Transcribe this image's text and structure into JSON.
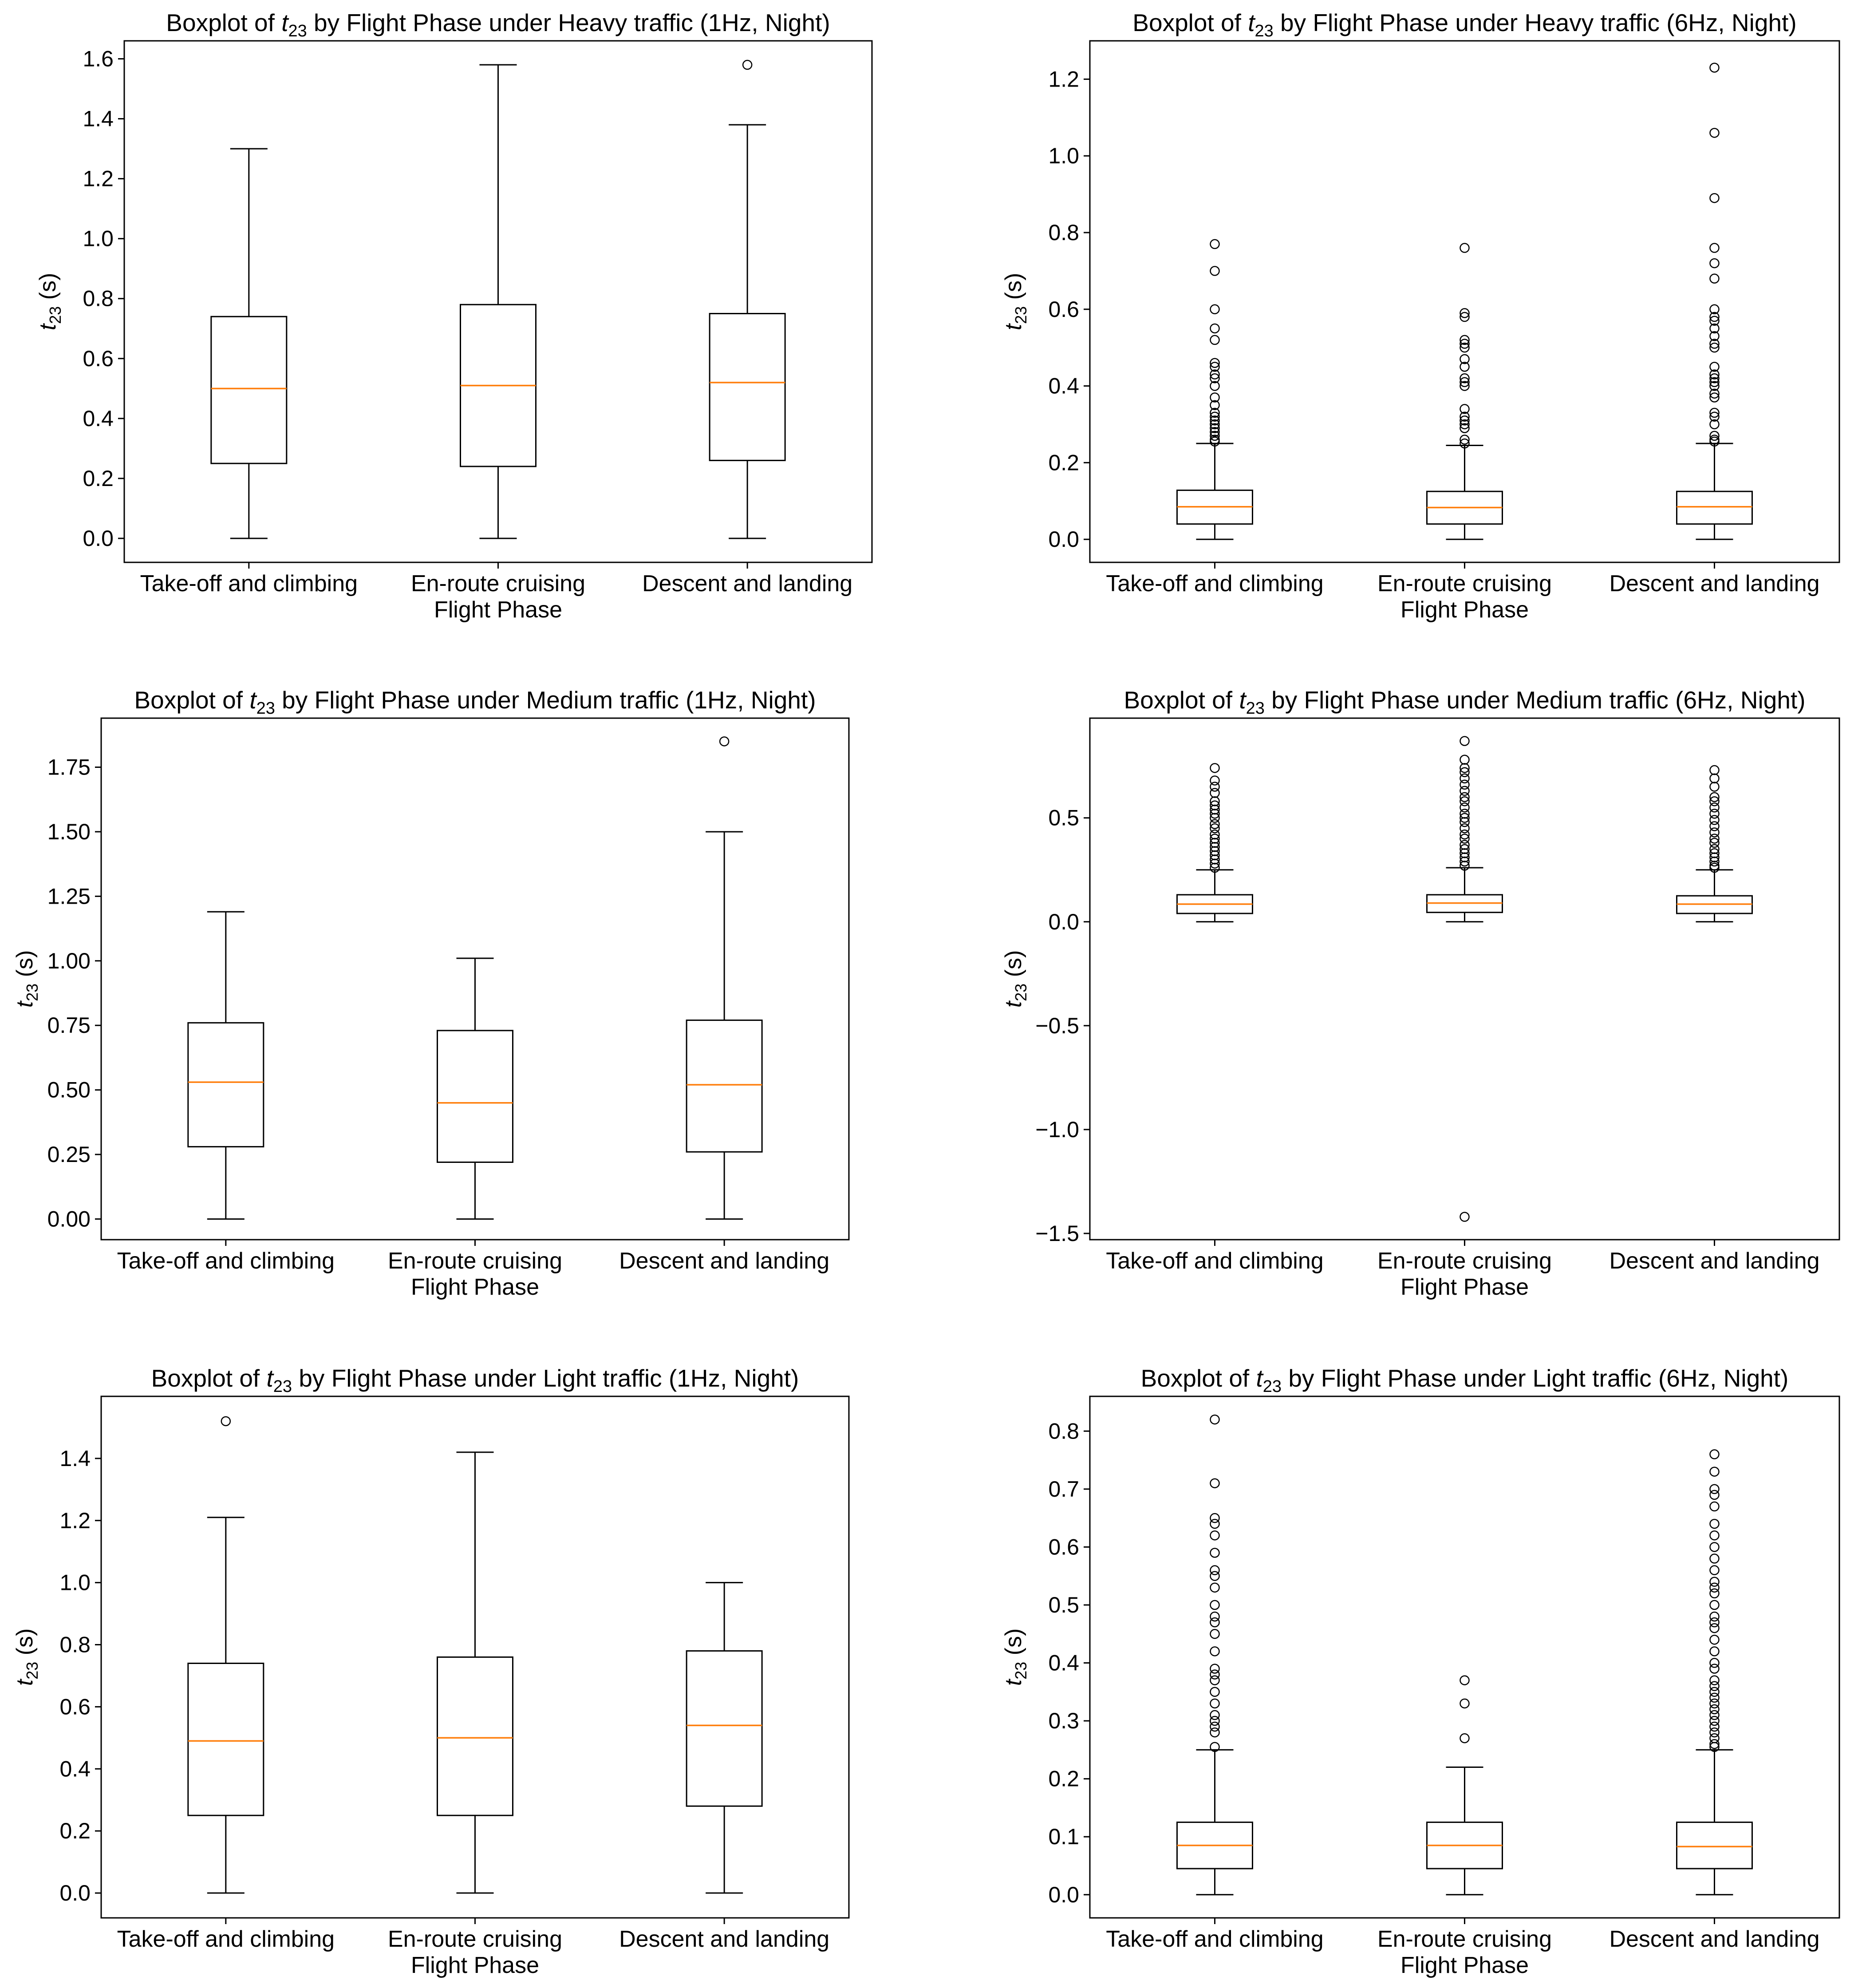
{
  "colors": {
    "box": "#000000",
    "median": "#ff7f0e",
    "flier": "#000000",
    "background": "#ffffff"
  },
  "chart_data": [
    {
      "type": "boxplot",
      "title_prefix": "Boxplot of ",
      "title_symbol": "t",
      "title_subscript": "23",
      "title_suffix": " by Flight Phase under Heavy traffic (1Hz, Night)",
      "xlabel": "Flight Phase",
      "ylabel_symbol": "t",
      "ylabel_subscript": "23",
      "ylabel_unit": " (s)",
      "categories": [
        "Take-off and climbing",
        "En-route cruising",
        "Descent and landing"
      ],
      "ylim": [
        -0.08,
        1.66
      ],
      "yticks": [
        0.0,
        0.2,
        0.4,
        0.6,
        0.8,
        1.0,
        1.2,
        1.4,
        1.6
      ],
      "ytick_labels": [
        "0.0",
        "0.2",
        "0.4",
        "0.6",
        "0.8",
        "1.0",
        "1.2",
        "1.4",
        "1.6"
      ],
      "boxes": [
        {
          "whisker_low": 0.0,
          "q1": 0.25,
          "median": 0.5,
          "q3": 0.74,
          "whisker_high": 1.3,
          "outliers": []
        },
        {
          "whisker_low": 0.0,
          "q1": 0.24,
          "median": 0.51,
          "q3": 0.78,
          "whisker_high": 1.58,
          "outliers": []
        },
        {
          "whisker_low": 0.0,
          "q1": 0.26,
          "median": 0.52,
          "q3": 0.75,
          "whisker_high": 1.38,
          "outliers": [
            1.58
          ]
        }
      ]
    },
    {
      "type": "boxplot",
      "title_prefix": "Boxplot of ",
      "title_symbol": "t",
      "title_subscript": "23",
      "title_suffix": " by Flight Phase under Heavy traffic (6Hz, Night)",
      "xlabel": "Flight Phase",
      "ylabel_symbol": "t",
      "ylabel_subscript": "23",
      "ylabel_unit": " (s)",
      "categories": [
        "Take-off and climbing",
        "En-route cruising",
        "Descent and landing"
      ],
      "ylim": [
        -0.06,
        1.3
      ],
      "yticks": [
        0.0,
        0.2,
        0.4,
        0.6,
        0.8,
        1.0,
        1.2
      ],
      "ytick_labels": [
        "0.0",
        "0.2",
        "0.4",
        "0.6",
        "0.8",
        "1.0",
        "1.2"
      ],
      "boxes": [
        {
          "whisker_low": 0.0,
          "q1": 0.04,
          "median": 0.085,
          "q3": 0.128,
          "whisker_high": 0.25,
          "outliers": [
            0.255,
            0.26,
            0.27,
            0.28,
            0.29,
            0.3,
            0.31,
            0.32,
            0.33,
            0.35,
            0.37,
            0.4,
            0.42,
            0.43,
            0.45,
            0.46,
            0.52,
            0.55,
            0.6,
            0.7,
            0.77
          ]
        },
        {
          "whisker_low": 0.0,
          "q1": 0.04,
          "median": 0.083,
          "q3": 0.125,
          "whisker_high": 0.245,
          "outliers": [
            0.25,
            0.26,
            0.29,
            0.3,
            0.31,
            0.32,
            0.34,
            0.4,
            0.41,
            0.42,
            0.45,
            0.47,
            0.5,
            0.51,
            0.52,
            0.58,
            0.59,
            0.76
          ]
        },
        {
          "whisker_low": 0.0,
          "q1": 0.04,
          "median": 0.085,
          "q3": 0.125,
          "whisker_high": 0.25,
          "outliers": [
            0.255,
            0.26,
            0.27,
            0.3,
            0.32,
            0.33,
            0.37,
            0.38,
            0.4,
            0.41,
            0.42,
            0.43,
            0.45,
            0.5,
            0.51,
            0.53,
            0.55,
            0.57,
            0.58,
            0.6,
            0.68,
            0.72,
            0.76,
            0.89,
            1.06,
            1.23
          ]
        }
      ]
    },
    {
      "type": "boxplot",
      "title_prefix": "Boxplot of ",
      "title_symbol": "t",
      "title_subscript": "23",
      "title_suffix": " by Flight Phase under Medium traffic (1Hz, Night)",
      "xlabel": "Flight Phase",
      "ylabel_symbol": "t",
      "ylabel_subscript": "23",
      "ylabel_unit": " (s)",
      "categories": [
        "Take-off and climbing",
        "En-route cruising",
        "Descent and landing"
      ],
      "ylim": [
        -0.08,
        1.94
      ],
      "yticks": [
        0.0,
        0.25,
        0.5,
        0.75,
        1.0,
        1.25,
        1.5,
        1.75
      ],
      "ytick_labels": [
        "0.00",
        "0.25",
        "0.50",
        "0.75",
        "1.00",
        "1.25",
        "1.50",
        "1.75"
      ],
      "boxes": [
        {
          "whisker_low": 0.0,
          "q1": 0.28,
          "median": 0.53,
          "q3": 0.76,
          "whisker_high": 1.19,
          "outliers": []
        },
        {
          "whisker_low": 0.0,
          "q1": 0.22,
          "median": 0.45,
          "q3": 0.73,
          "whisker_high": 1.01,
          "outliers": []
        },
        {
          "whisker_low": 0.0,
          "q1": 0.26,
          "median": 0.52,
          "q3": 0.77,
          "whisker_high": 1.5,
          "outliers": [
            1.85
          ]
        }
      ]
    },
    {
      "type": "boxplot",
      "title_prefix": "Boxplot of ",
      "title_symbol": "t",
      "title_subscript": "23",
      "title_suffix": " by Flight Phase under Medium traffic (6Hz, Night)",
      "xlabel": "Flight Phase",
      "ylabel_symbol": "t",
      "ylabel_subscript": "23",
      "ylabel_unit": " (s)",
      "categories": [
        "Take-off and climbing",
        "En-route cruising",
        "Descent and landing"
      ],
      "ylim": [
        -1.53,
        0.98
      ],
      "yticks": [
        -1.5,
        -1.0,
        -0.5,
        0.0,
        0.5
      ],
      "ytick_labels": [
        "−1.5",
        "−1.0",
        "−0.5",
        "0.0",
        "0.5"
      ],
      "boxes": [
        {
          "whisker_low": 0.0,
          "q1": 0.04,
          "median": 0.085,
          "q3": 0.13,
          "whisker_high": 0.25,
          "outliers": [
            0.26,
            0.28,
            0.3,
            0.32,
            0.34,
            0.36,
            0.38,
            0.4,
            0.42,
            0.45,
            0.47,
            0.5,
            0.52,
            0.54,
            0.56,
            0.58,
            0.62,
            0.65,
            0.68,
            0.74
          ]
        },
        {
          "whisker_low": 0.0,
          "q1": 0.045,
          "median": 0.09,
          "q3": 0.13,
          "whisker_high": 0.26,
          "outliers": [
            -1.42,
            0.27,
            0.29,
            0.31,
            0.33,
            0.35,
            0.37,
            0.4,
            0.42,
            0.45,
            0.48,
            0.5,
            0.52,
            0.55,
            0.58,
            0.6,
            0.63,
            0.66,
            0.69,
            0.72,
            0.74,
            0.78,
            0.87
          ]
        },
        {
          "whisker_low": 0.0,
          "q1": 0.04,
          "median": 0.085,
          "q3": 0.125,
          "whisker_high": 0.25,
          "outliers": [
            0.26,
            0.27,
            0.29,
            0.31,
            0.33,
            0.35,
            0.38,
            0.4,
            0.43,
            0.46,
            0.49,
            0.52,
            0.55,
            0.58,
            0.6,
            0.65,
            0.69,
            0.73
          ]
        }
      ]
    },
    {
      "type": "boxplot",
      "title_prefix": "Boxplot of ",
      "title_symbol": "t",
      "title_subscript": "23",
      "title_suffix": " by Flight Phase under Light traffic (1Hz, Night)",
      "xlabel": "Flight Phase",
      "ylabel_symbol": "t",
      "ylabel_subscript": "23",
      "ylabel_unit": " (s)",
      "categories": [
        "Take-off and climbing",
        "En-route cruising",
        "Descent and landing"
      ],
      "ylim": [
        -0.08,
        1.6
      ],
      "yticks": [
        0.0,
        0.2,
        0.4,
        0.6,
        0.8,
        1.0,
        1.2,
        1.4
      ],
      "ytick_labels": [
        "0.0",
        "0.2",
        "0.4",
        "0.6",
        "0.8",
        "1.0",
        "1.2",
        "1.4"
      ],
      "boxes": [
        {
          "whisker_low": 0.0,
          "q1": 0.25,
          "median": 0.49,
          "q3": 0.74,
          "whisker_high": 1.21,
          "outliers": [
            1.52
          ]
        },
        {
          "whisker_low": 0.0,
          "q1": 0.25,
          "median": 0.5,
          "q3": 0.76,
          "whisker_high": 1.42,
          "outliers": []
        },
        {
          "whisker_low": 0.0,
          "q1": 0.28,
          "median": 0.54,
          "q3": 0.78,
          "whisker_high": 1.0,
          "outliers": []
        }
      ]
    },
    {
      "type": "boxplot",
      "title_prefix": "Boxplot of ",
      "title_symbol": "t",
      "title_subscript": "23",
      "title_suffix": " by Flight Phase under Light traffic (6Hz, Night)",
      "xlabel": "Flight Phase",
      "ylabel_symbol": "t",
      "ylabel_subscript": "23",
      "ylabel_unit": " (s)",
      "categories": [
        "Take-off and climbing",
        "En-route cruising",
        "Descent and landing"
      ],
      "ylim": [
        -0.04,
        0.86
      ],
      "yticks": [
        0.0,
        0.1,
        0.2,
        0.3,
        0.4,
        0.5,
        0.6,
        0.7,
        0.8
      ],
      "ytick_labels": [
        "0.0",
        "0.1",
        "0.2",
        "0.3",
        "0.4",
        "0.5",
        "0.6",
        "0.7",
        "0.8"
      ],
      "boxes": [
        {
          "whisker_low": 0.0,
          "q1": 0.045,
          "median": 0.085,
          "q3": 0.125,
          "whisker_high": 0.25,
          "outliers": [
            0.255,
            0.28,
            0.29,
            0.3,
            0.31,
            0.33,
            0.35,
            0.37,
            0.38,
            0.39,
            0.42,
            0.45,
            0.47,
            0.48,
            0.5,
            0.53,
            0.55,
            0.56,
            0.59,
            0.62,
            0.64,
            0.65,
            0.71,
            0.82
          ]
        },
        {
          "whisker_low": 0.0,
          "q1": 0.045,
          "median": 0.085,
          "q3": 0.125,
          "whisker_high": 0.22,
          "outliers": [
            0.27,
            0.33,
            0.37
          ]
        },
        {
          "whisker_low": 0.0,
          "q1": 0.045,
          "median": 0.083,
          "q3": 0.125,
          "whisker_high": 0.25,
          "outliers": [
            0.255,
            0.26,
            0.27,
            0.28,
            0.29,
            0.3,
            0.31,
            0.32,
            0.33,
            0.34,
            0.35,
            0.36,
            0.37,
            0.39,
            0.4,
            0.42,
            0.44,
            0.46,
            0.47,
            0.48,
            0.5,
            0.52,
            0.53,
            0.54,
            0.56,
            0.58,
            0.6,
            0.62,
            0.64,
            0.67,
            0.69,
            0.7,
            0.73,
            0.76
          ]
        }
      ]
    }
  ]
}
